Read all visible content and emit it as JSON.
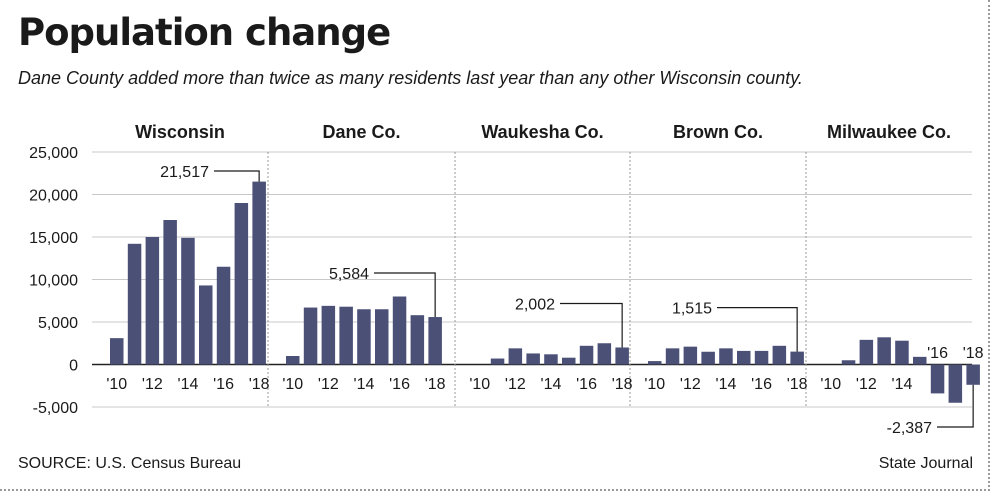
{
  "title": "Population change",
  "subtitle": "Dane County added more than twice as many residents last year than any other Wisconsin county.",
  "source": "SOURCE: U.S. Census Bureau",
  "credit": "State Journal",
  "colors": {
    "bar": "#4b5077",
    "grid": "#c8c8c8",
    "divider": "#9a9a9a",
    "zero": "#222222"
  },
  "chart_data": {
    "type": "bar",
    "ylim": [
      -5000,
      25000
    ],
    "yticks": [
      25000,
      20000,
      15000,
      10000,
      5000,
      0,
      -5000
    ],
    "ytick_labels": [
      "25,000",
      "20,000",
      "15,000",
      "10,000",
      "5,000",
      "0",
      "-5,000"
    ],
    "grid": true,
    "categories": [
      "'10",
      "'11",
      "'12",
      "'13",
      "'14",
      "'15",
      "'16",
      "'17",
      "'18"
    ],
    "panels": [
      {
        "name": "Wisconsin",
        "values": [
          3100,
          14200,
          15000,
          17000,
          14900,
          9300,
          11500,
          19000,
          21517
        ],
        "xtick_labels": [
          "'10",
          "'12",
          "'14",
          "'16",
          "'18"
        ],
        "callout": "21,517"
      },
      {
        "name": "Dane Co.",
        "values": [
          1000,
          6700,
          6900,
          6800,
          6500,
          6500,
          8000,
          5800,
          5584
        ],
        "xtick_labels": [
          "'10",
          "'12",
          "'14",
          "'16",
          "'18"
        ],
        "callout": "5,584"
      },
      {
        "name": "Waukesha Co.",
        "values": [
          0,
          700,
          1900,
          1300,
          1200,
          800,
          2200,
          2500,
          2002
        ],
        "xtick_labels": [
          "'10",
          "'12",
          "'14",
          "'16",
          "'18"
        ],
        "callout": "2,002"
      },
      {
        "name": "Brown Co.",
        "values": [
          400,
          1900,
          2100,
          1500,
          1900,
          1600,
          1600,
          2200,
          1515
        ],
        "xtick_labels": [
          "'10",
          "'12",
          "'14",
          "'16",
          "'18"
        ],
        "callout": "1,515"
      },
      {
        "name": "Milwaukee Co.",
        "values": [
          0,
          500,
          2900,
          3200,
          2800,
          900,
          -3400,
          -4500,
          -2387
        ],
        "xtick_labels": [
          "'10",
          "'12",
          "'14",
          "'16",
          "'18"
        ],
        "callout": "-2,387"
      }
    ]
  }
}
